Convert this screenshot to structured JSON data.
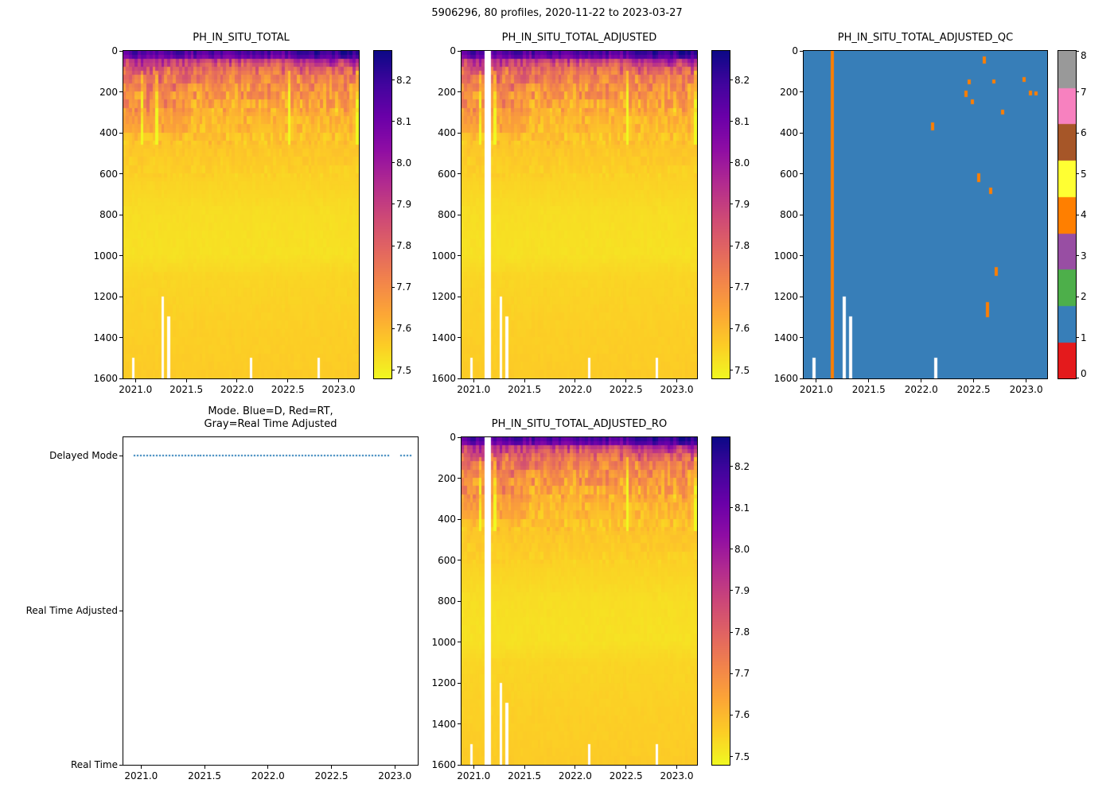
{
  "figure": {
    "title": "5906296, 80 profiles, 2020-11-22 to 2023-03-27"
  },
  "palette": {
    "plasma_reversed_stops": [
      "#f0f921",
      "#fcce25",
      "#fca636",
      "#f2844b",
      "#e16462",
      "#cc4778",
      "#b12a90",
      "#8f0da4",
      "#6a00a8",
      "#41049d",
      "#0d0887"
    ],
    "qc_colors": [
      "#e41a1c",
      "#377eb8",
      "#4daf4a",
      "#984ea3",
      "#ff7f00",
      "#ffff33",
      "#a65628",
      "#f781bf",
      "#999999"
    ],
    "mode_dot_color": "#1f77b4",
    "missing_color": "#ffffff"
  },
  "chart_data": [
    {
      "type": "heatmap",
      "title": "PH_IN_SITU_TOTAL",
      "x_range": [
        2020.88,
        2023.2
      ],
      "xticks": [
        2021.0,
        2021.5,
        2022.0,
        2022.5,
        2023.0
      ],
      "xtick_labels": [
        "2021.0",
        "2021.5",
        "2022.0",
        "2022.5",
        "2023.0"
      ],
      "y_range": [
        0,
        1600
      ],
      "yticks": [
        0,
        200,
        400,
        600,
        800,
        1000,
        1200,
        1400,
        1600
      ],
      "ytick_labels": [
        "0",
        "200",
        "400",
        "600",
        "800",
        "1000",
        "1200",
        "1400",
        "1600"
      ],
      "n_profiles": 80,
      "colormap": "plasma_r",
      "colorbar_range": [
        7.48,
        8.27
      ],
      "colorbar_ticks": [
        7.5,
        7.6,
        7.7,
        7.8,
        7.9,
        8.0,
        8.1,
        8.2
      ],
      "colorbar_tick_labels": [
        "7.5",
        "7.6",
        "7.7",
        "7.8",
        "7.9",
        "8.0",
        "8.1",
        "8.2"
      ],
      "mean_profile": {
        "depth": [
          0,
          30,
          60,
          100,
          150,
          200,
          300,
          400,
          500,
          600,
          800,
          1000,
          1100,
          1300,
          1600
        ],
        "ph": [
          8.08,
          8.0,
          7.86,
          7.76,
          7.71,
          7.67,
          7.62,
          7.59,
          7.57,
          7.555,
          7.53,
          7.525,
          7.545,
          7.555,
          7.565
        ]
      },
      "missing_bottom": [
        {
          "t": 2020.98,
          "from_depth": 1500
        },
        {
          "t": 2021.27,
          "from_depth": 1200
        },
        {
          "t": 2021.34,
          "from_depth": 1300
        },
        {
          "t": 2022.14,
          "from_depth": 1500
        },
        {
          "t": 2022.81,
          "from_depth": 1500
        }
      ],
      "white_columns": []
    },
    {
      "type": "heatmap",
      "title": "PH_IN_SITU_TOTAL_ADJUSTED",
      "x_range": [
        2020.88,
        2023.2
      ],
      "xticks": [
        2021.0,
        2021.5,
        2022.0,
        2022.5,
        2023.0
      ],
      "xtick_labels": [
        "2021.0",
        "2021.5",
        "2022.0",
        "2022.5",
        "2023.0"
      ],
      "y_range": [
        0,
        1600
      ],
      "yticks": [
        0,
        200,
        400,
        600,
        800,
        1000,
        1200,
        1400,
        1600
      ],
      "ytick_labels": [
        "0",
        "200",
        "400",
        "600",
        "800",
        "1000",
        "1200",
        "1400",
        "1600"
      ],
      "n_profiles": 80,
      "colormap": "plasma_r",
      "colorbar_range": [
        7.48,
        8.27
      ],
      "colorbar_ticks": [
        7.5,
        7.6,
        7.7,
        7.8,
        7.9,
        8.0,
        8.1,
        8.2
      ],
      "colorbar_tick_labels": [
        "7.5",
        "7.6",
        "7.7",
        "7.8",
        "7.9",
        "8.0",
        "8.1",
        "8.2"
      ],
      "mean_profile": {
        "depth": [
          0,
          30,
          60,
          100,
          150,
          200,
          300,
          400,
          500,
          600,
          800,
          1000,
          1100,
          1300,
          1600
        ],
        "ph": [
          8.08,
          8.0,
          7.86,
          7.76,
          7.71,
          7.67,
          7.62,
          7.59,
          7.57,
          7.555,
          7.53,
          7.525,
          7.545,
          7.555,
          7.565
        ]
      },
      "missing_bottom": [
        {
          "t": 2020.98,
          "from_depth": 1500
        },
        {
          "t": 2021.27,
          "from_depth": 1200
        },
        {
          "t": 2021.34,
          "from_depth": 1300
        },
        {
          "t": 2022.14,
          "from_depth": 1500
        },
        {
          "t": 2022.81,
          "from_depth": 1500
        }
      ],
      "white_columns": [
        2021.13,
        2021.16
      ]
    },
    {
      "type": "heatmap_qc",
      "title": "PH_IN_SITU_TOTAL_ADJUSTED_QC",
      "x_range": [
        2020.88,
        2023.2
      ],
      "xticks": [
        2021.0,
        2021.5,
        2022.0,
        2022.5,
        2023.0
      ],
      "xtick_labels": [
        "2021.0",
        "2021.5",
        "2022.0",
        "2022.5",
        "2023.0"
      ],
      "y_range": [
        0,
        1600
      ],
      "yticks": [
        0,
        200,
        400,
        600,
        800,
        1000,
        1200,
        1400,
        1600
      ],
      "ytick_labels": [
        "0",
        "200",
        "400",
        "600",
        "800",
        "1000",
        "1200",
        "1400",
        "1600"
      ],
      "n_profiles": 80,
      "flag_values": [
        0,
        1,
        2,
        3,
        4,
        5,
        6,
        7,
        8
      ],
      "flag_tick_labels": [
        "0",
        "1",
        "2",
        "3",
        "4",
        "5",
        "6",
        "7",
        "8"
      ],
      "background_flag": 1,
      "bad_flag": 4,
      "orange_marks": [
        {
          "t": 2021.145,
          "d0": 0,
          "d1": 1600
        },
        {
          "t": 2022.12,
          "d0": 350,
          "d1": 385
        },
        {
          "t": 2022.42,
          "d0": 195,
          "d1": 225
        },
        {
          "t": 2022.47,
          "d0": 140,
          "d1": 160
        },
        {
          "t": 2022.5,
          "d0": 240,
          "d1": 262
        },
        {
          "t": 2022.56,
          "d0": 600,
          "d1": 640
        },
        {
          "t": 2022.6,
          "d0": 30,
          "d1": 62
        },
        {
          "t": 2022.63,
          "d0": 1230,
          "d1": 1300
        },
        {
          "t": 2022.66,
          "d0": 670,
          "d1": 700
        },
        {
          "t": 2022.7,
          "d0": 140,
          "d1": 158
        },
        {
          "t": 2022.72,
          "d0": 1060,
          "d1": 1100
        },
        {
          "t": 2022.79,
          "d0": 290,
          "d1": 312
        },
        {
          "t": 2022.98,
          "d0": 130,
          "d1": 152
        },
        {
          "t": 2023.05,
          "d0": 195,
          "d1": 218
        },
        {
          "t": 2023.1,
          "d0": 200,
          "d1": 216
        }
      ],
      "missing_bottom": [
        {
          "t": 2020.98,
          "from_depth": 1500
        },
        {
          "t": 2021.27,
          "from_depth": 1200
        },
        {
          "t": 2021.34,
          "from_depth": 1300
        },
        {
          "t": 2022.14,
          "from_depth": 1500
        }
      ]
    },
    {
      "type": "categorical_line",
      "title": "Mode. Blue=D, Red=RT,\nGray=Real Time Adjusted",
      "x_range": [
        2020.86,
        2023.18
      ],
      "xticks": [
        2021.0,
        2021.5,
        2022.0,
        2022.5,
        2023.0
      ],
      "xtick_labels": [
        "2021.0",
        "2021.5",
        "2022.0",
        "2022.5",
        "2023.0"
      ],
      "categories": [
        "Delayed Mode",
        "Real Time Adjusted",
        "Real Time"
      ],
      "category_positions": [
        0.056,
        0.53,
        1.0
      ],
      "series": [
        {
          "name": "mode",
          "value": "Delayed Mode",
          "style": "dotted",
          "segments": [
            [
              2020.94,
              2022.96
            ],
            [
              2023.04,
              2023.12
            ]
          ]
        }
      ]
    },
    {
      "type": "heatmap",
      "title": "PH_IN_SITU_TOTAL_ADJUSTED_RO",
      "x_range": [
        2020.88,
        2023.2
      ],
      "xticks": [
        2021.0,
        2021.5,
        2022.0,
        2022.5,
        2023.0
      ],
      "xtick_labels": [
        "2021.0",
        "2021.5",
        "2022.0",
        "2022.5",
        "2023.0"
      ],
      "y_range": [
        0,
        1600
      ],
      "yticks": [
        0,
        200,
        400,
        600,
        800,
        1000,
        1200,
        1400,
        1600
      ],
      "ytick_labels": [
        "0",
        "200",
        "400",
        "600",
        "800",
        "1000",
        "1200",
        "1400",
        "1600"
      ],
      "n_profiles": 80,
      "colormap": "plasma_r",
      "colorbar_range": [
        7.48,
        8.27
      ],
      "colorbar_ticks": [
        7.5,
        7.6,
        7.7,
        7.8,
        7.9,
        8.0,
        8.1,
        8.2
      ],
      "colorbar_tick_labels": [
        "7.5",
        "7.6",
        "7.7",
        "7.8",
        "7.9",
        "8.0",
        "8.1",
        "8.2"
      ],
      "mean_profile": {
        "depth": [
          0,
          30,
          60,
          100,
          150,
          200,
          300,
          400,
          500,
          600,
          800,
          1000,
          1100,
          1300,
          1600
        ],
        "ph": [
          8.08,
          8.0,
          7.86,
          7.76,
          7.71,
          7.67,
          7.62,
          7.59,
          7.57,
          7.555,
          7.53,
          7.525,
          7.545,
          7.555,
          7.565
        ]
      },
      "missing_bottom": [
        {
          "t": 2020.98,
          "from_depth": 1500
        },
        {
          "t": 2021.27,
          "from_depth": 1200
        },
        {
          "t": 2021.34,
          "from_depth": 1300
        },
        {
          "t": 2022.14,
          "from_depth": 1500
        },
        {
          "t": 2022.81,
          "from_depth": 1500
        }
      ],
      "white_columns": [
        2021.13,
        2021.16
      ]
    }
  ]
}
